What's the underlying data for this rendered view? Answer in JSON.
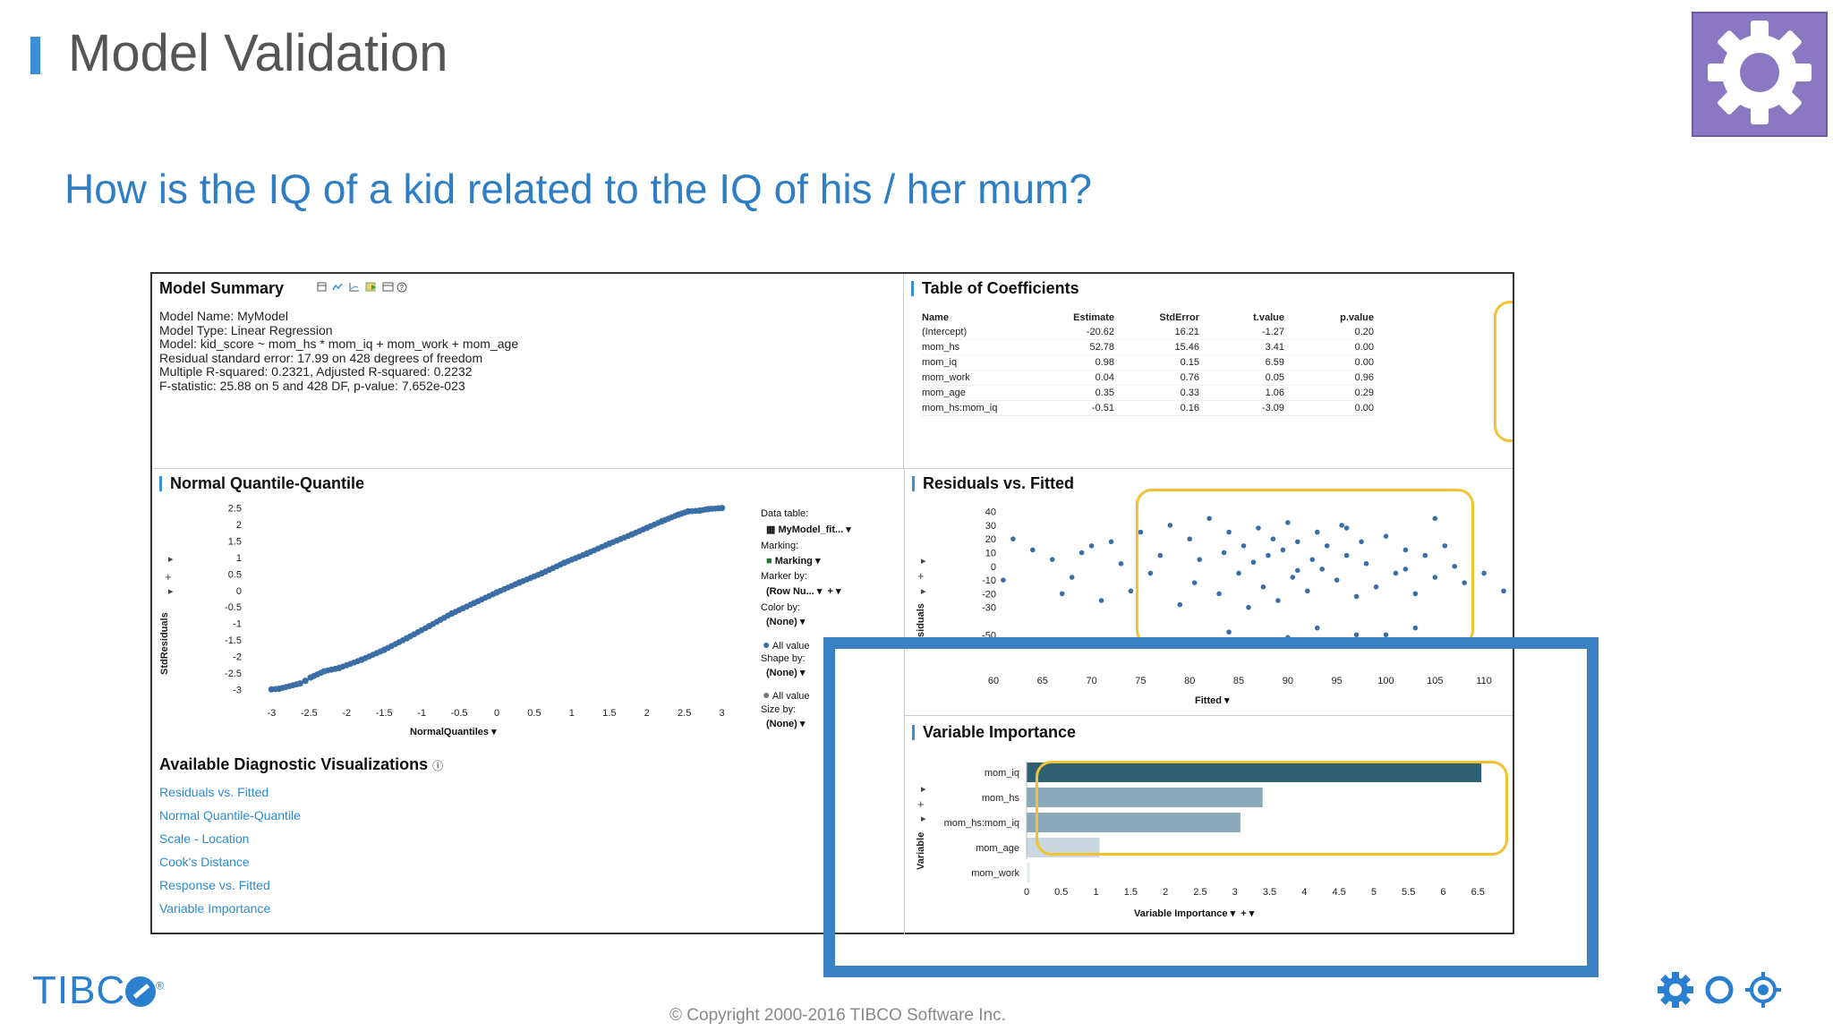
{
  "slide": {
    "title": "Model Validation",
    "subtitle": "How is the IQ of a kid related to the IQ of his / her mum?",
    "copyright": "© Copyright 2000-2016 TIBCO Software Inc.",
    "logo_text": "TIBC",
    "logo_reg": "®",
    "corner_icon": "gear-icon",
    "footer_icons": [
      "gear-icon",
      "ring-icon",
      "crosshair-icon"
    ],
    "colors": {
      "accent": "#3a8fd6",
      "title": "#555555",
      "subtitle": "#2f7ec4",
      "highlight": "#f2c230",
      "focus_box": "#3a82c4",
      "gear_bg": "#8a78c2"
    }
  },
  "model_summary": {
    "title": "Model Summary",
    "toolbar_icons": [
      "table-icon",
      "line-icon",
      "chart-icon",
      "export-icon",
      "window-icon",
      "help-icon"
    ],
    "lines": [
      "Model Name: MyModel",
      "Model Type: Linear Regression",
      "Model: kid_score ~ mom_hs * mom_iq + mom_work + mom_age",
      "Residual standard error: 17.99 on 428 degrees of freedom",
      "Multiple R-squared: 0.2321, Adjusted R-squared: 0.2232",
      "F-statistic: 25.88 on 5 and 428 DF, p-value: 7.652e-023"
    ]
  },
  "coefficients": {
    "title": "Table of Coefficients",
    "columns": [
      "Name",
      "Estimate",
      "StdError",
      "t.value",
      "p.value"
    ],
    "rows": [
      [
        "(Intercept)",
        "-20.62",
        "16.21",
        "-1.27",
        "0.20"
      ],
      [
        "mom_hs",
        "52.78",
        "15.46",
        "3.41",
        "0.00"
      ],
      [
        "mom_iq",
        "0.98",
        "0.15",
        "6.59",
        "0.00"
      ],
      [
        "mom_work",
        "0.04",
        "0.76",
        "0.05",
        "0.96"
      ],
      [
        "mom_age",
        "0.35",
        "0.33",
        "1.06",
        "0.29"
      ],
      [
        "mom_hs:mom_iq",
        "-0.51",
        "0.16",
        "-3.09",
        "0.00"
      ]
    ]
  },
  "qq": {
    "title": "Normal Quantile-Quantile",
    "x_axis_label": "NormalQuantiles",
    "y_axis_label": "StdResiduals",
    "x_ticks": [
      "-3",
      "-2.5",
      "-2",
      "-1.5",
      "-1",
      "-0.5",
      "0",
      "0.5",
      "1",
      "1.5",
      "2",
      "2.5",
      "3"
    ],
    "y_ticks": [
      "2.5",
      "2",
      "1.5",
      "1",
      "0.5",
      "0",
      "-0.5",
      "-1",
      "-1.5",
      "-2",
      "-2.5",
      "-3"
    ],
    "controls": {
      "data_table_label": "Data table:",
      "data_table_value": "MyModel_fit...",
      "marking_label": "Marking:",
      "marking_value": "Marking",
      "marker_by_label": "Marker by:",
      "marker_by_value": "(Row Nu...",
      "color_by_label": "Color by:",
      "color_by_value": "(None)",
      "color_legend": "All value",
      "shape_by_label": "Shape by:",
      "shape_by_value": "(None)",
      "shape_legend": "All value",
      "size_by_label": "Size by:",
      "size_by_value": "(None)"
    }
  },
  "diagnostics": {
    "title": "Available Diagnostic Visualizations",
    "links": [
      "Residuals vs. Fitted",
      "Normal Quantile-Quantile",
      "Scale - Location",
      "Cook's Distance",
      "Response vs. Fitted",
      "Variable Importance"
    ]
  },
  "residuals": {
    "title": "Residuals vs. Fitted",
    "x_axis_label": "Fitted",
    "y_axis_label": "Residuals",
    "y_axis_label_visible": "siduals",
    "x_ticks": [
      "60",
      "65",
      "70",
      "75",
      "80",
      "85",
      "90",
      "95",
      "100",
      "105",
      "110"
    ],
    "y_ticks": [
      "40",
      "30",
      "20",
      "10",
      "0",
      "-10",
      "-20",
      "-30",
      "-50"
    ]
  },
  "variable_importance": {
    "title": "Variable Importance",
    "x_axis_label": "Variable Importance",
    "y_axis_label": "Variable"
  },
  "chart_data": [
    {
      "type": "bar",
      "title": "Variable Importance",
      "xlabel": "Variable Importance",
      "ylabel": "Variable",
      "categories": [
        "mom_iq",
        "mom_hs",
        "mom_hs:mom_iq",
        "mom_age",
        "mom_work"
      ],
      "values": [
        6.55,
        3.4,
        3.08,
        1.05,
        0.05
      ],
      "colors": [
        "#2e5f73",
        "#8aaab9",
        "#8aaab9",
        "#c9d8e0",
        "#e6eef2"
      ],
      "x_ticks": [
        "0",
        "0.5",
        "1",
        "1.5",
        "2",
        "2.5",
        "3",
        "3.5",
        "4",
        "4.5",
        "5",
        "5.5",
        "6",
        "6.5"
      ],
      "xlim": [
        0,
        6.6
      ],
      "orientation": "horizontal"
    },
    {
      "type": "scatter",
      "title": "Normal Quantile-Quantile",
      "xlabel": "NormalQuantiles",
      "ylabel": "StdResiduals",
      "xlim": [
        -3.1,
        3.1
      ],
      "ylim": [
        -3.1,
        2.6
      ],
      "points": [
        [
          -3.0,
          -3.0
        ],
        [
          -2.9,
          -2.98
        ],
        [
          -2.62,
          -2.82
        ],
        [
          -2.55,
          -2.74
        ],
        [
          -2.48,
          -2.64
        ],
        [
          -2.3,
          -2.45
        ],
        [
          -2.1,
          -2.35
        ],
        [
          -1.8,
          -2.1
        ],
        [
          -1.5,
          -1.8
        ],
        [
          -1.2,
          -1.45
        ],
        [
          -0.9,
          -1.08
        ],
        [
          -0.6,
          -0.7
        ],
        [
          -0.3,
          -0.38
        ],
        [
          0.0,
          -0.06
        ],
        [
          0.3,
          0.24
        ],
        [
          0.6,
          0.52
        ],
        [
          0.9,
          0.84
        ],
        [
          1.2,
          1.12
        ],
        [
          1.5,
          1.42
        ],
        [
          1.8,
          1.7
        ],
        [
          2.0,
          1.9
        ],
        [
          2.2,
          2.1
        ],
        [
          2.42,
          2.3
        ],
        [
          2.55,
          2.4
        ],
        [
          2.7,
          2.42
        ],
        [
          2.82,
          2.47
        ],
        [
          3.0,
          2.5
        ]
      ]
    },
    {
      "type": "scatter",
      "title": "Residuals vs. Fitted",
      "xlabel": "Fitted",
      "ylabel": "Residuals",
      "xlim": [
        59,
        113
      ],
      "ylim": [
        -57,
        45
      ],
      "points": [
        [
          61,
          -10
        ],
        [
          62,
          20
        ],
        [
          64,
          12
        ],
        [
          66,
          5
        ],
        [
          67,
          -20
        ],
        [
          68,
          -8
        ],
        [
          69,
          10
        ],
        [
          70,
          15
        ],
        [
          71,
          -25
        ],
        [
          72,
          18
        ],
        [
          73,
          2
        ],
        [
          74,
          -18
        ],
        [
          75,
          25
        ],
        [
          76,
          -5
        ],
        [
          77,
          8
        ],
        [
          78,
          30
        ],
        [
          79,
          -28
        ],
        [
          80,
          20
        ],
        [
          80.5,
          -12
        ],
        [
          81,
          5
        ],
        [
          82,
          35
        ],
        [
          83,
          -20
        ],
        [
          83.5,
          10
        ],
        [
          84,
          25
        ],
        [
          85,
          -5
        ],
        [
          85.5,
          15
        ],
        [
          86,
          -30
        ],
        [
          86.5,
          3
        ],
        [
          87,
          28
        ],
        [
          87.5,
          -15
        ],
        [
          88,
          8
        ],
        [
          88.5,
          20
        ],
        [
          89,
          -25
        ],
        [
          89.5,
          12
        ],
        [
          90,
          32
        ],
        [
          90.5,
          -8
        ],
        [
          91,
          18
        ],
        [
          92,
          -18
        ],
        [
          92.5,
          5
        ],
        [
          93,
          25
        ],
        [
          93.5,
          -2
        ],
        [
          94,
          15
        ],
        [
          95,
          -10
        ],
        [
          95.5,
          30
        ],
        [
          96,
          8
        ],
        [
          97,
          -22
        ],
        [
          97.5,
          18
        ],
        [
          98,
          2
        ],
        [
          99,
          -15
        ],
        [
          100,
          22
        ],
        [
          101,
          -5
        ],
        [
          102,
          12
        ],
        [
          103,
          -20
        ],
        [
          104,
          8
        ],
        [
          105,
          -8
        ],
        [
          106,
          15
        ],
        [
          107,
          0
        ],
        [
          108,
          -12
        ],
        [
          110,
          -5
        ],
        [
          112,
          -18
        ],
        [
          84,
          -48
        ],
        [
          90,
          -52
        ],
        [
          97,
          -50
        ],
        [
          103,
          -45
        ],
        [
          100,
          -50
        ],
        [
          93,
          -45
        ],
        [
          105,
          35
        ],
        [
          102,
          -2
        ],
        [
          96,
          28
        ],
        [
          91,
          -3
        ]
      ]
    }
  ]
}
